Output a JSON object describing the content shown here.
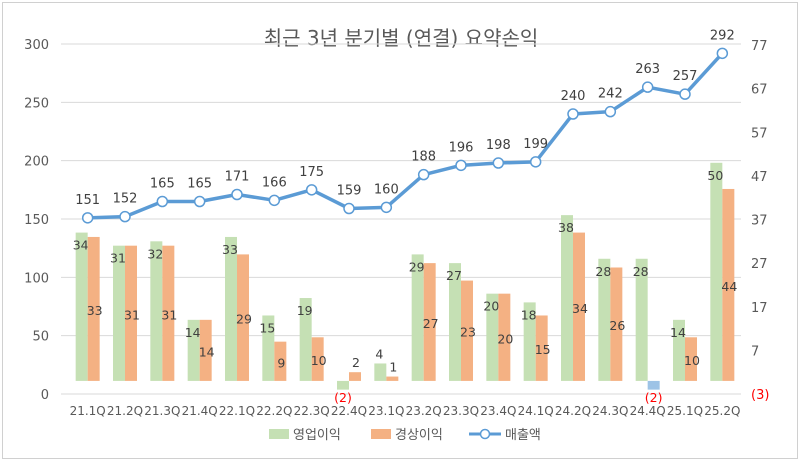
{
  "chart_data": {
    "type": "bar+line",
    "title": "최근 3년 분기별 (연결) 요약손익",
    "categories": [
      "21.1Q",
      "21.2Q",
      "21.3Q",
      "21.4Q",
      "22.1Q",
      "22.2Q",
      "22.3Q",
      "22.4Q",
      "23.1Q",
      "23.2Q",
      "23.3Q",
      "23.4Q",
      "24.1Q",
      "24.2Q",
      "24.3Q",
      "24.4Q",
      "25.1Q",
      "25.2Q"
    ],
    "series": [
      {
        "name": "영업이익",
        "type": "bar",
        "axis": "right",
        "color": "#c5e0b4",
        "values": [
          34,
          31,
          32,
          14,
          33,
          15,
          19,
          -2,
          4,
          29,
          27,
          20,
          18,
          38,
          28,
          28,
          14,
          50
        ]
      },
      {
        "name": "경상이익",
        "type": "bar",
        "axis": "right",
        "color": "#f4b183",
        "negative_color": "#9dc3e6",
        "values": [
          33,
          31,
          31,
          14,
          29,
          9,
          10,
          2,
          1,
          27,
          23,
          20,
          15,
          34,
          26,
          -2,
          10,
          44
        ]
      },
      {
        "name": "매출액",
        "type": "line",
        "axis": "left",
        "color": "#5b9bd5",
        "values": [
          151,
          152,
          165,
          165,
          171,
          166,
          175,
          159,
          160,
          188,
          196,
          198,
          199,
          240,
          242,
          263,
          257,
          292
        ]
      }
    ],
    "left_axis": {
      "range": [
        0,
        300
      ],
      "ticks": [
        "0",
        "50",
        "100",
        "150",
        "200",
        "250",
        "300"
      ],
      "tick_values": [
        0,
        50,
        100,
        150,
        200,
        250,
        300
      ]
    },
    "right_axis": {
      "range": [
        -3,
        77
      ],
      "ticks": [
        "(3)",
        "7",
        "17",
        "27",
        "37",
        "47",
        "57",
        "67",
        "77"
      ],
      "tick_values": [
        -3,
        7,
        17,
        27,
        37,
        47,
        57,
        67,
        77
      ]
    },
    "negative_label_color": "#ff0000",
    "grid": true,
    "legend": "bottom"
  }
}
